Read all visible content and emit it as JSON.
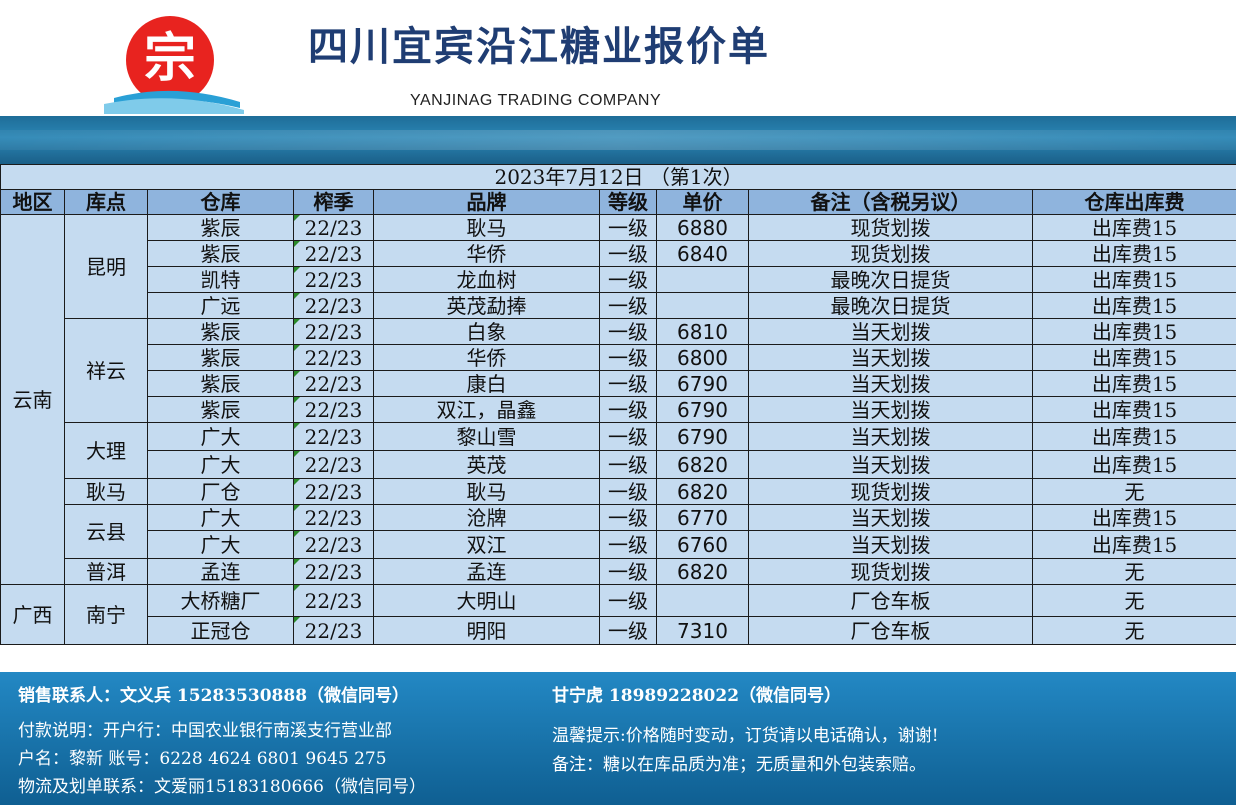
{
  "header": {
    "title": "四川宜宾沿江糖业报价单",
    "subtitle": "YANJINAG TRADING COMPANY",
    "logo_char": "宗"
  },
  "date_line": "2023年7月12日 （第1次）",
  "columns": [
    "地区",
    "库点",
    "仓库",
    "榨季",
    "品牌",
    "等级",
    "单价",
    "备注（含税另议）",
    "仓库出库费"
  ],
  "rows": [
    {
      "region": "云南",
      "point": "昆明",
      "warehouse": "紫辰",
      "season": "22/23",
      "brand": "耿马",
      "grade": "一级",
      "price": "6880",
      "note": "现货划拨",
      "fee": "出库费15"
    },
    {
      "region": "",
      "point": "",
      "warehouse": "紫辰",
      "season": "22/23",
      "brand": "华侨",
      "grade": "一级",
      "price": "6840",
      "note": "现货划拨",
      "fee": "出库费15"
    },
    {
      "region": "",
      "point": "",
      "warehouse": "凯特",
      "season": "22/23",
      "brand": "龙血树",
      "grade": "一级",
      "price": "",
      "note": "最晚次日提货",
      "fee": "出库费15"
    },
    {
      "region": "",
      "point": "",
      "warehouse": "广远",
      "season": "22/23",
      "brand": "英茂勐捧",
      "grade": "一级",
      "price": "",
      "note": "最晚次日提货",
      "fee": "出库费15"
    },
    {
      "region": "",
      "point": "祥云",
      "warehouse": "紫辰",
      "season": "22/23",
      "brand": "白象",
      "grade": "一级",
      "price": "6810",
      "note": "当天划拨",
      "fee": "出库费15"
    },
    {
      "region": "",
      "point": "",
      "warehouse": "紫辰",
      "season": "22/23",
      "brand": "华侨",
      "grade": "一级",
      "price": "6800",
      "note": "当天划拨",
      "fee": "出库费15"
    },
    {
      "region": "",
      "point": "",
      "warehouse": "紫辰",
      "season": "22/23",
      "brand": "康白",
      "grade": "一级",
      "price": "6790",
      "note": "当天划拨",
      "fee": "出库费15"
    },
    {
      "region": "",
      "point": "",
      "warehouse": "紫辰",
      "season": "22/23",
      "brand": "双江，晶鑫",
      "grade": "一级",
      "price": "6790",
      "note": "当天划拨",
      "fee": "出库费15"
    },
    {
      "region": "",
      "point": "大理",
      "warehouse": "广大",
      "season": "22/23",
      "brand": "黎山雪",
      "grade": "一级",
      "price": "6790",
      "note": "当天划拨",
      "fee": "出库费15"
    },
    {
      "region": "",
      "point": "",
      "warehouse": "广大",
      "season": "22/23",
      "brand": "英茂",
      "grade": "一级",
      "price": "6820",
      "note": "当天划拨",
      "fee": "出库费15"
    },
    {
      "region": "",
      "point": "耿马",
      "warehouse": "厂仓",
      "season": "22/23",
      "brand": "耿马",
      "grade": "一级",
      "price": "6820",
      "note": "现货划拨",
      "fee": "无"
    },
    {
      "region": "",
      "point": "云县",
      "warehouse": "广大",
      "season": "22/23",
      "brand": "沧牌",
      "grade": "一级",
      "price": "6770",
      "note": "当天划拨",
      "fee": "出库费15"
    },
    {
      "region": "",
      "point": "",
      "warehouse": "广大",
      "season": "22/23",
      "brand": "双江",
      "grade": "一级",
      "price": "6760",
      "note": "当天划拨",
      "fee": "出库费15"
    },
    {
      "region": "",
      "point": "普洱",
      "warehouse": "孟连",
      "season": "22/23",
      "brand": "孟连",
      "grade": "一级",
      "price": "6820",
      "note": "现货划拨",
      "fee": "无"
    },
    {
      "region": "广西",
      "point": "南宁",
      "warehouse": "大桥糖厂",
      "season": "22/23",
      "brand": "大明山",
      "grade": "一级",
      "price": "",
      "note": "厂仓车板",
      "fee": "无"
    },
    {
      "region": "",
      "point": "",
      "warehouse": "正冠仓",
      "season": "22/23",
      "brand": "明阳",
      "grade": "一级",
      "price": "7310",
      "note": "厂仓车板",
      "fee": "无"
    }
  ],
  "footer": {
    "sales_contact": "销售联系人：文义兵 15283530888（微信同号）",
    "sales_contact2": "甘宁虎 18989228022（微信同号）",
    "payment": "付款说明：开户行：中国农业银行南溪支行营业部",
    "account": "户名：黎新 账号：6228 4624 6801 9645 275",
    "logistics": "物流及划单联系：文爱丽15183180666（微信同号）",
    "reminder": "温馨提示:价格随时变动，订货请以电话确认，谢谢!",
    "remark": "备注：糖以在库品质为准；无质量和外包装索赔。"
  },
  "colors": {
    "title": "#1f3d73",
    "season": "#d4141a",
    "table_bg": "#c5dbf0",
    "header_bg": "#8fb4dd",
    "footer_bg": "#1b78b0"
  }
}
